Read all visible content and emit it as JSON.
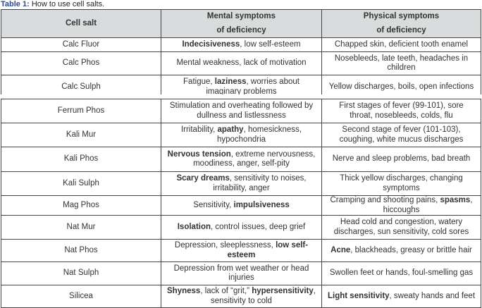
{
  "caption": {
    "label": "Table 1:",
    "text": " How to use cell salts."
  },
  "headers": {
    "col1": "Cell salt",
    "col2_line1": "Mental symptoms",
    "col2_line2": "of deficiency",
    "col3_line1": "Physical symptoms",
    "col3_line2": "of deficiency"
  },
  "rows": [
    {
      "salt": "Calc Fluor",
      "mental": [
        {
          "t": "Indecisiveness",
          "b": true
        },
        {
          "t": ", low self-esteem"
        }
      ],
      "physical": [
        {
          "t": "Chapped skin, deficient tooth enamel"
        }
      ]
    },
    {
      "salt": "Calc Phos",
      "mental": [
        {
          "t": "Mental weakness, lack of motivation"
        }
      ],
      "physical": [
        {
          "t": "Nosebleeds, late teeth, headaches in children"
        }
      ]
    },
    {
      "salt": "Calc Sulph",
      "mental": [
        {
          "t": "Fatigue, "
        },
        {
          "t": "laziness",
          "b": true
        },
        {
          "t": ", worries about imaginary problems"
        }
      ],
      "physical": [
        {
          "t": "Yellow discharges, boils, open infections"
        }
      ]
    },
    {
      "salt": "Ferrum Phos",
      "mental": [
        {
          "t": "Stimulation and overheating followed by dullness and listlessness"
        }
      ],
      "physical": [
        {
          "t": "First stages of fever (99-101), sore throat, nosebleeds, colds, flu"
        }
      ]
    },
    {
      "salt": "Kali Mur",
      "mental": [
        {
          "t": "Irritability, "
        },
        {
          "t": "apathy",
          "b": true
        },
        {
          "t": ", homesickness, hypochondria"
        }
      ],
      "physical": [
        {
          "t": "Second stage of fever (101-103), coughing, white mucus discharges"
        }
      ]
    },
    {
      "salt": "Kali Phos",
      "mental": [
        {
          "t": "Nervous tension",
          "b": true
        },
        {
          "t": ", extreme nervousness, moodiness, anger, self-pity"
        }
      ],
      "physical": [
        {
          "t": "Nerve and sleep problems, bad breath"
        }
      ]
    },
    {
      "salt": "Kali Sulph",
      "mental": [
        {
          "t": "Scary dreams",
          "b": true
        },
        {
          "t": ", sensitivity to noises, irritability, anger"
        }
      ],
      "physical": [
        {
          "t": "Thick yellow discharges, changing symptoms"
        }
      ]
    },
    {
      "salt": "Mag Phos",
      "mental": [
        {
          "t": "Sensitivity, "
        },
        {
          "t": "impulsiveness",
          "b": true
        }
      ],
      "physical": [
        {
          "t": "Cramping and shooting pains, "
        },
        {
          "t": "spasms",
          "b": true
        },
        {
          "t": ", hiccoughs"
        }
      ]
    },
    {
      "salt": "Nat Mur",
      "mental": [
        {
          "t": "Isolation",
          "b": true
        },
        {
          "t": ", control issues, deep grief"
        }
      ],
      "physical": [
        {
          "t": "Head cold and congestion, watery discharges, sun sensitivity, cold sores"
        }
      ]
    },
    {
      "salt": "Nat Phos",
      "mental": [
        {
          "t": "Depression, sleeplessness, "
        },
        {
          "t": "low self-esteem",
          "b": true
        }
      ],
      "physical": [
        {
          "t": "Acne",
          "b": true
        },
        {
          "t": ", blackheads, greasy or brittle hair"
        }
      ]
    },
    {
      "salt": "Nat Sulph",
      "mental": [
        {
          "t": "Depression from wet weather or head injuries"
        }
      ],
      "physical": [
        {
          "t": "Swollen feet or hands, foul-smelling gas"
        }
      ]
    },
    {
      "salt": "Silicea",
      "mental": [
        {
          "t": "Shyness",
          "b": true
        },
        {
          "t": ", lack of “grit,” "
        },
        {
          "t": "hypersensitivity",
          "b": true
        },
        {
          "t": ", sensitivity to cold"
        }
      ],
      "physical": [
        {
          "t": "Light sensitivity",
          "b": true
        },
        {
          "t": ", sweaty hands and feet"
        }
      ]
    }
  ]
}
